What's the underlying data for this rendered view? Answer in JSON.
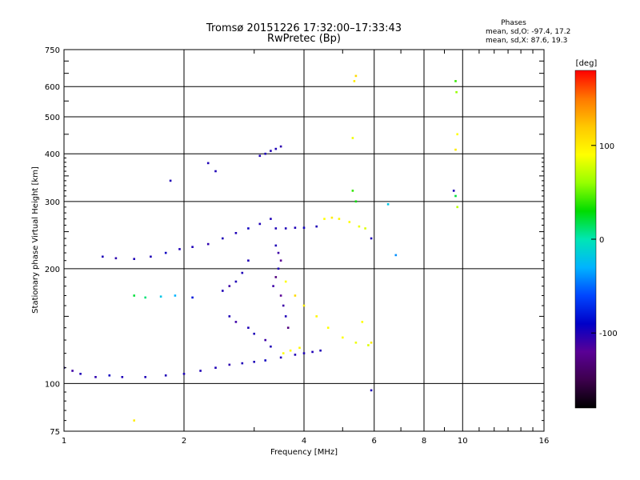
{
  "chart_data": {
    "type": "scatter",
    "title": "Tromsø 20151226 17:32:00–17:33:43",
    "subtitle": "RwPretec (Bp)",
    "xlabel": "Frequency [MHz]",
    "ylabel": "Stationary phase Virtual Height [km]",
    "x_scale": "log",
    "y_scale": "log",
    "xlim": [
      1,
      16
    ],
    "ylim": [
      75,
      750
    ],
    "x_ticks": [
      1,
      2,
      4,
      6,
      8,
      10,
      16
    ],
    "x_tick_labels": [
      "1",
      "2",
      "4",
      "6",
      "8",
      "10",
      "16"
    ],
    "y_ticks": [
      75,
      100,
      200,
      300,
      400,
      500,
      600,
      750
    ],
    "y_tick_labels": [
      "75",
      "100",
      "200",
      "300",
      "400",
      "500",
      "600",
      "750"
    ],
    "grid": true,
    "phases_box": {
      "heading": "Phases",
      "line_o": "mean, sd,O: -97.4, 17.2",
      "line_x": "mean, sd,X:  87.6, 19.3"
    },
    "colorbar": {
      "label": "[deg]",
      "range": [
        -180,
        180
      ],
      "ticks": [
        -100,
        0,
        100
      ],
      "tick_labels": [
        "-100",
        "0",
        "100"
      ],
      "colors": [
        "#000000",
        "#3d004d",
        "#5a0096",
        "#0000c8",
        "#0046ff",
        "#00b4ff",
        "#00e6b4",
        "#00dc00",
        "#96ff00",
        "#ffff00",
        "#ffc800",
        "#ff7800",
        "#ff0000"
      ]
    },
    "series": [
      {
        "points": [
          [
            1.0,
            110,
            -100
          ],
          [
            1.05,
            108,
            -110
          ],
          [
            1.1,
            106,
            -100
          ],
          [
            1.2,
            104,
            -105
          ],
          [
            1.3,
            105,
            -95
          ],
          [
            1.4,
            104,
            -100
          ],
          [
            1.6,
            104,
            -100
          ],
          [
            1.8,
            105,
            -100
          ],
          [
            2.0,
            106,
            -100
          ],
          [
            2.2,
            108,
            -100
          ],
          [
            2.4,
            110,
            -100
          ],
          [
            2.6,
            112,
            -105
          ],
          [
            2.8,
            113,
            -100
          ],
          [
            3.0,
            114,
            -100
          ],
          [
            3.2,
            115,
            -95
          ],
          [
            3.5,
            117,
            -100
          ],
          [
            3.8,
            119,
            -100
          ],
          [
            4.0,
            120,
            -100
          ],
          [
            4.2,
            121,
            -100
          ],
          [
            4.4,
            122,
            -100
          ],
          [
            1.25,
            215,
            -100
          ],
          [
            1.35,
            213,
            -105
          ],
          [
            1.5,
            212,
            -100
          ],
          [
            1.65,
            215,
            -100
          ],
          [
            1.8,
            220,
            -95
          ],
          [
            1.95,
            225,
            -100
          ],
          [
            2.1,
            228,
            -100
          ],
          [
            2.3,
            232,
            -105
          ],
          [
            2.5,
            240,
            -100
          ],
          [
            2.7,
            248,
            -100
          ],
          [
            2.9,
            255,
            -95
          ],
          [
            3.1,
            262,
            -100
          ],
          [
            3.3,
            270,
            -100
          ],
          [
            3.4,
            255,
            -100
          ],
          [
            3.6,
            255,
            -100
          ],
          [
            3.8,
            256,
            -100
          ],
          [
            4.0,
            256,
            -95
          ],
          [
            4.3,
            258,
            -100
          ],
          [
            3.1,
            395,
            -100
          ],
          [
            3.2,
            400,
            -100
          ],
          [
            3.3,
            407,
            -100
          ],
          [
            3.4,
            412,
            -100
          ],
          [
            3.5,
            418,
            -105
          ],
          [
            1.85,
            340,
            -100
          ],
          [
            2.3,
            378,
            -100
          ],
          [
            2.4,
            360,
            -100
          ],
          [
            1.5,
            170,
            20
          ],
          [
            1.6,
            168,
            10
          ],
          [
            1.75,
            169,
            -20
          ],
          [
            1.9,
            170,
            -30
          ],
          [
            2.1,
            168,
            -80
          ],
          [
            2.5,
            175,
            -100
          ],
          [
            2.6,
            180,
            -110
          ],
          [
            2.7,
            185,
            -100
          ],
          [
            2.8,
            195,
            -100
          ],
          [
            2.9,
            210,
            -100
          ],
          [
            2.6,
            150,
            -100
          ],
          [
            2.7,
            145,
            -110
          ],
          [
            2.9,
            140,
            -100
          ],
          [
            3.0,
            135,
            -100
          ],
          [
            3.2,
            130,
            -110
          ],
          [
            3.3,
            125,
            -100
          ],
          [
            3.35,
            180,
            -110
          ],
          [
            3.4,
            190,
            -130
          ],
          [
            3.45,
            200,
            -100
          ],
          [
            3.5,
            170,
            -120
          ],
          [
            3.55,
            160,
            -110
          ],
          [
            3.6,
            150,
            -100
          ],
          [
            3.65,
            140,
            -130
          ],
          [
            3.4,
            230,
            -100
          ],
          [
            3.45,
            220,
            -110
          ],
          [
            3.5,
            210,
            -120
          ],
          [
            3.55,
            120,
            90
          ],
          [
            3.7,
            122,
            90
          ],
          [
            3.9,
            124,
            95
          ],
          [
            3.6,
            185,
            90
          ],
          [
            3.8,
            170,
            110
          ],
          [
            4.0,
            160,
            100
          ],
          [
            4.3,
            150,
            95
          ],
          [
            4.6,
            140,
            90
          ],
          [
            5.0,
            132,
            90
          ],
          [
            5.4,
            128,
            85
          ],
          [
            5.8,
            126,
            80
          ],
          [
            4.5,
            270,
            90
          ],
          [
            4.7,
            272,
            100
          ],
          [
            4.9,
            270,
            95
          ],
          [
            5.2,
            265,
            90
          ],
          [
            5.5,
            258,
            85
          ],
          [
            5.7,
            255,
            80
          ],
          [
            5.3,
            440,
            85
          ],
          [
            5.35,
            620,
            100
          ],
          [
            5.4,
            640,
            110
          ],
          [
            5.3,
            320,
            40
          ],
          [
            5.4,
            300,
            30
          ],
          [
            9.6,
            620,
            40
          ],
          [
            9.65,
            580,
            60
          ],
          [
            9.6,
            410,
            100
          ],
          [
            9.7,
            450,
            90
          ],
          [
            9.5,
            320,
            -100
          ],
          [
            9.6,
            310,
            20
          ],
          [
            9.7,
            290,
            70
          ],
          [
            5.9,
            240,
            -100
          ],
          [
            6.5,
            295,
            -20
          ],
          [
            6.8,
            217,
            -40
          ],
          [
            5.9,
            96,
            -100
          ],
          [
            1.5,
            80,
            100
          ],
          [
            5.6,
            145,
            90
          ],
          [
            5.9,
            128,
            100
          ]
        ]
      }
    ]
  }
}
